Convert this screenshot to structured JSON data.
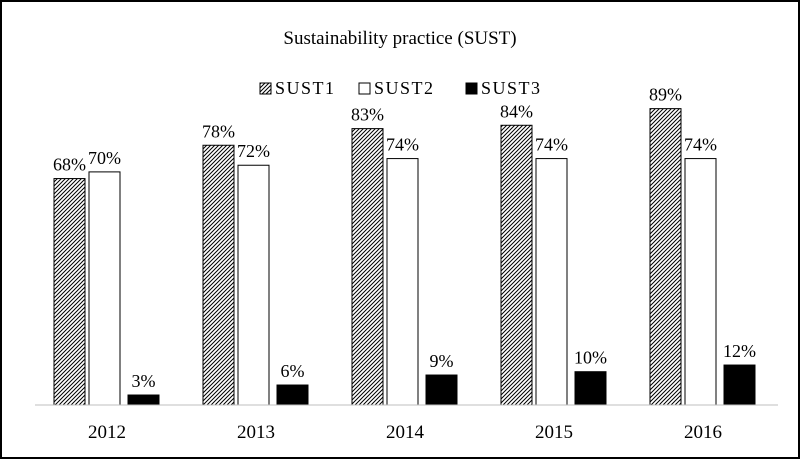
{
  "chart_data": {
    "type": "bar",
    "title": "Sustainability practice (SUST)",
    "xlabel": "",
    "ylabel": "",
    "categories": [
      "2012",
      "2013",
      "2014",
      "2015",
      "2016"
    ],
    "ylim": [
      0,
      100
    ],
    "grid": false,
    "legend_position": "top",
    "series": [
      {
        "name": "SUST1",
        "values": [
          68,
          78,
          83,
          84,
          89
        ],
        "labels": [
          "68%",
          "78%",
          "83%",
          "84%",
          "89%"
        ],
        "fill": "hatched",
        "color": "#000000"
      },
      {
        "name": "SUST2",
        "values": [
          70,
          72,
          74,
          74,
          74
        ],
        "labels": [
          "70%",
          "72%",
          "74%",
          "74%",
          "74%"
        ],
        "fill": "white",
        "color": "#ffffff"
      },
      {
        "name": "SUST3",
        "values": [
          3,
          6,
          9,
          10,
          12
        ],
        "labels": [
          "3%",
          "6%",
          "9%",
          "10%",
          "12%"
        ],
        "fill": "solid",
        "color": "#000000"
      }
    ]
  }
}
